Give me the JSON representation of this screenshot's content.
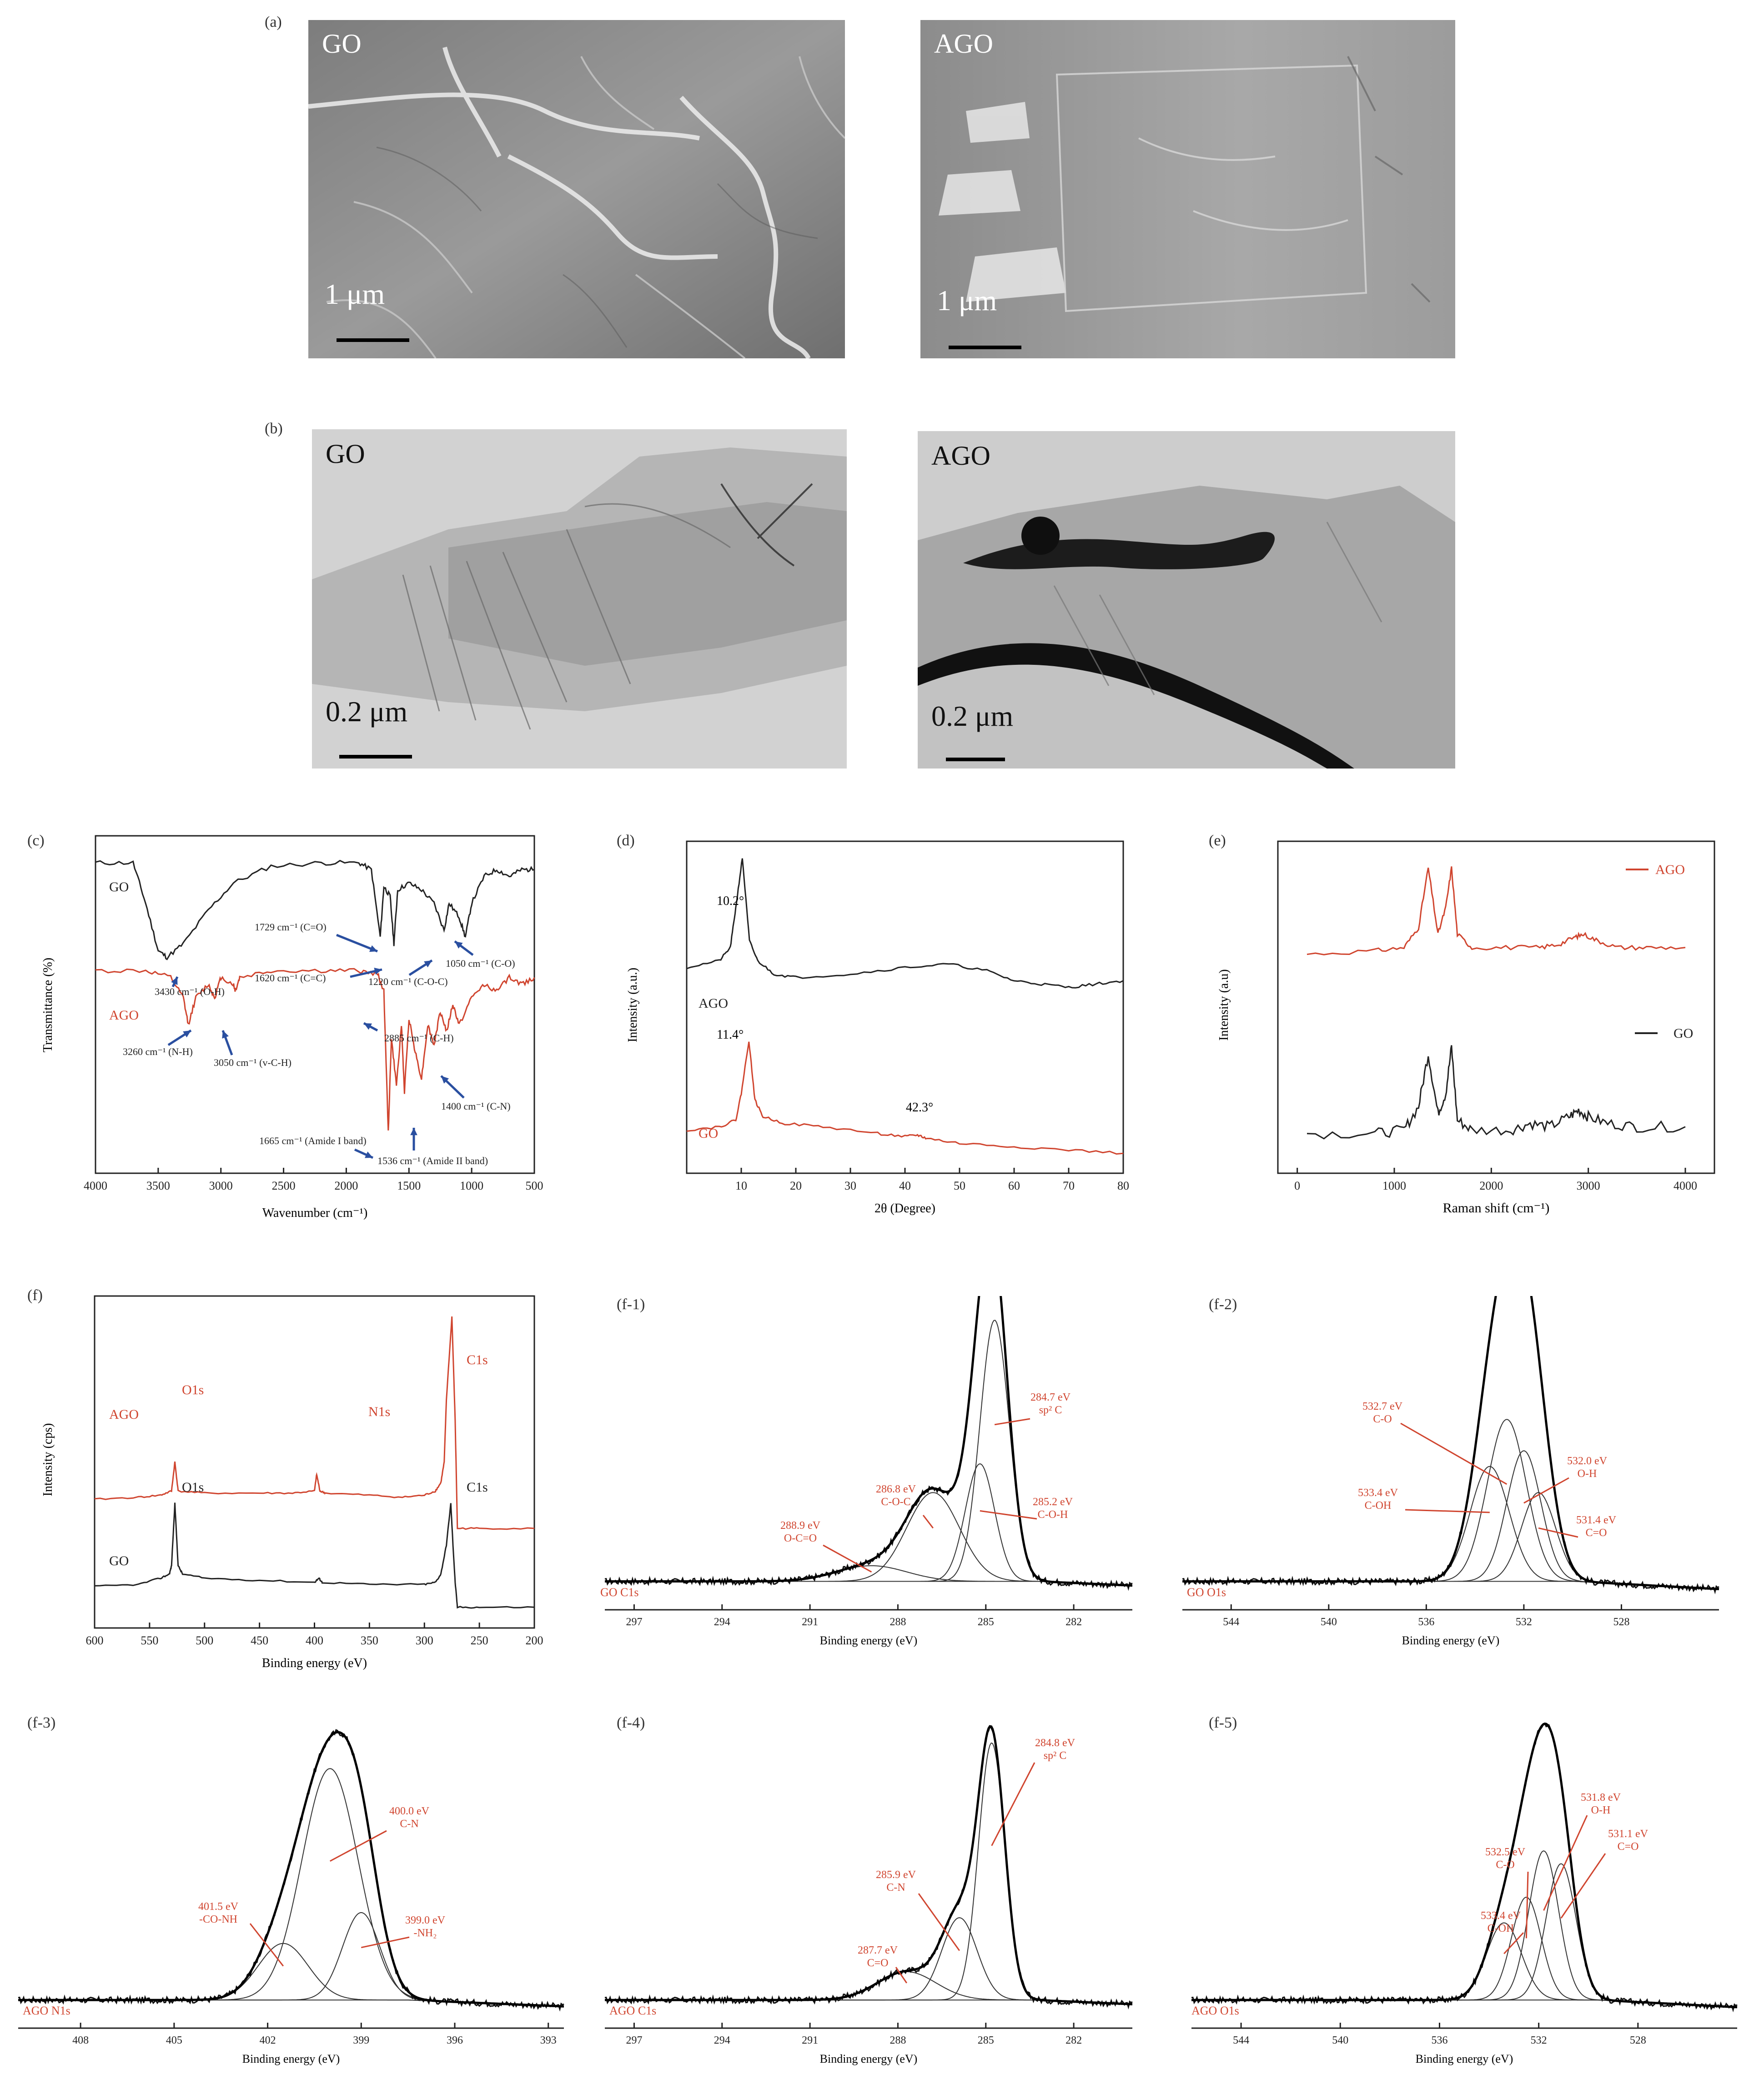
{
  "panels": {
    "a": "(a)",
    "b": "(b)",
    "c": "(c)",
    "d": "(d)",
    "e": "(e)",
    "f": "(f)",
    "f1": "(f-1)",
    "f2": "(f-2)",
    "f3": "(f-3)",
    "f4": "(f-4)",
    "f5": "(f-5)"
  },
  "sem": {
    "go_label": "GO",
    "ago_label": "AGO",
    "go_scale": "1 μm",
    "ago_scale": "1 μm"
  },
  "tem": {
    "go_label": "GO",
    "ago_label": "AGO",
    "go_scale": "0.2 μm",
    "ago_scale": "0.2 μm"
  },
  "colors": {
    "ago": "#d0452f",
    "go": "#222222",
    "arrow": "#2a4fa0",
    "fit": "#333333"
  },
  "chart_data": [
    {
      "id": "c",
      "type": "line",
      "xlabel": "Wavenumber  (cm⁻¹)",
      "ylabel": "Transmittance (%)",
      "xlim": [
        4000,
        500
      ],
      "xticks": [
        "4000",
        "3500",
        "3000",
        "2500",
        "2000",
        "1500",
        "1000",
        "500"
      ],
      "series": [
        {
          "name": "GO",
          "color": "#222222",
          "x": [
            4000,
            3700,
            3600,
            3500,
            3430,
            3300,
            3100,
            2900,
            2600,
            2200,
            1900,
            1800,
            1729,
            1700,
            1650,
            1620,
            1590,
            1500,
            1400,
            1300,
            1220,
            1180,
            1100,
            1050,
            1000,
            900,
            800,
            700,
            600,
            500
          ],
          "y": [
            92,
            92,
            80,
            66,
            64,
            68,
            78,
            86,
            91,
            92,
            92,
            90,
            70,
            85,
            82,
            68,
            84,
            86,
            84,
            80,
            72,
            80,
            76,
            70,
            80,
            88,
            90,
            88,
            90,
            90
          ]
        },
        {
          "name": "AGO",
          "color": "#d0452f",
          "x": [
            4000,
            3600,
            3400,
            3300,
            3260,
            3200,
            3100,
            3050,
            3000,
            2900,
            2885,
            2850,
            2600,
            2200,
            1900,
            1750,
            1700,
            1665,
            1640,
            1600,
            1560,
            1536,
            1500,
            1450,
            1400,
            1350,
            1300,
            1250,
            1200,
            1150,
            1100,
            1000,
            900,
            800,
            700,
            600,
            500
          ],
          "y": [
            60,
            60,
            58,
            52,
            44,
            52,
            56,
            52,
            58,
            56,
            54,
            58,
            60,
            60,
            60,
            59,
            54,
            12,
            40,
            26,
            44,
            24,
            46,
            36,
            28,
            44,
            38,
            48,
            42,
            50,
            44,
            52,
            56,
            54,
            58,
            56,
            58
          ]
        }
      ],
      "annotations": [
        "1729 cm⁻¹ (C=O)",
        "1620 cm⁻¹ (C=C)",
        "1220 cm⁻¹ (C-O-C)",
        "1050 cm⁻¹ (C-O)",
        "3430 cm⁻¹ (O-H)",
        "2885 cm⁻¹ (C-H)",
        "3260 cm⁻¹ (N-H)",
        "3050 cm⁻¹ (v-C-H)",
        "1400 cm⁻¹ (C-N)",
        "1665 cm⁻¹ (Amide I band)",
        "1536 cm⁻¹ (Amide II band)"
      ]
    },
    {
      "id": "d",
      "type": "line",
      "xlabel": "2θ (Degree)",
      "ylabel": "Intensity (a.u.)",
      "xlim": [
        0,
        80
      ],
      "xticks": [
        "10",
        "20",
        "30",
        "40",
        "50",
        "60",
        "70",
        "80"
      ],
      "series": [
        {
          "name": "AGO",
          "color": "#222222",
          "x": [
            0,
            6,
            8,
            9,
            10.2,
            11.5,
            13,
            16,
            20,
            30,
            40,
            48,
            55,
            60,
            65,
            70,
            75,
            80
          ],
          "y": [
            62,
            64,
            68,
            80,
            95,
            70,
            64,
            60,
            59,
            60,
            62,
            63,
            61,
            58,
            57,
            56,
            57,
            58
          ]
        },
        {
          "name": "GO",
          "color": "#d0452f",
          "x": [
            0,
            6,
            9,
            10,
            11.4,
            12.5,
            14,
            18,
            25,
            35,
            40,
            42.3,
            44,
            50,
            60,
            70,
            80
          ],
          "y": [
            13,
            14,
            16,
            24,
            40,
            22,
            17,
            15,
            14,
            12,
            11,
            11.5,
            10.5,
            9,
            8,
            7,
            6
          ]
        }
      ],
      "annotations": [
        "10.2°",
        "11.4°",
        "42.3°"
      ]
    },
    {
      "id": "e",
      "type": "line",
      "xlabel": "Raman shift (cm⁻¹)",
      "ylabel": "Intensity (a.u)",
      "xlim": [
        -200,
        4300
      ],
      "xticks": [
        "0",
        "1000",
        "2000",
        "3000",
        "4000"
      ],
      "series": [
        {
          "name": "AGO",
          "color": "#d0452f",
          "x": [
            100,
            800,
            1100,
            1250,
            1350,
            1450,
            1530,
            1590,
            1650,
            1800,
            2200,
            2500,
            2700,
            2850,
            2950,
            3100,
            3300,
            3600,
            4000
          ],
          "y": [
            66,
            67,
            68,
            74,
            92,
            72,
            80,
            92,
            72,
            68,
            68,
            68,
            69,
            71,
            72,
            70,
            68,
            68,
            68
          ]
        },
        {
          "name": "GO",
          "color": "#222222",
          "x": [
            100,
            800,
            1100,
            1250,
            1350,
            1450,
            1530,
            1590,
            1650,
            1800,
            2200,
            2400,
            2600,
            2800,
            2900,
            3000,
            3200,
            3500,
            4000
          ],
          "y": [
            12,
            12,
            13,
            20,
            36,
            18,
            24,
            38,
            16,
            13,
            13,
            15,
            14,
            17,
            19,
            17,
            15,
            14,
            14
          ]
        }
      ],
      "legend": [
        "AGO",
        "GO"
      ]
    },
    {
      "id": "f",
      "type": "line",
      "xlabel": "Binding energy  (eV)",
      "ylabel": "Intensity (cps)",
      "xlim": [
        600,
        200
      ],
      "xticks": [
        "600",
        "550",
        "500",
        "450",
        "400",
        "350",
        "300",
        "250",
        "200"
      ],
      "series": [
        {
          "name": "AGO",
          "color": "#d0452f",
          "x": [
            600,
            560,
            540,
            530,
            527,
            524,
            500,
            450,
            420,
            400,
            398,
            395,
            390,
            350,
            320,
            300,
            290,
            285,
            282,
            280,
            275,
            272,
            270,
            250,
            200
          ],
          "y": [
            62,
            63,
            64,
            66,
            80,
            66,
            65,
            65,
            65,
            66,
            74,
            66,
            65,
            64,
            63,
            64,
            66,
            70,
            80,
            110,
            150,
            100,
            48,
            48,
            48
          ]
        },
        {
          "name": "GO",
          "color": "#222222",
          "x": [
            600,
            560,
            540,
            532,
            530,
            527,
            524,
            520,
            500,
            450,
            400,
            396,
            393,
            350,
            300,
            290,
            285,
            280,
            276,
            274,
            272,
            270,
            250,
            200
          ],
          "y": [
            20,
            21,
            24,
            26,
            30,
            60,
            30,
            26,
            24,
            23,
            22,
            24,
            22,
            21,
            21,
            22,
            26,
            40,
            60,
            40,
            22,
            10,
            10,
            10
          ]
        }
      ],
      "annotations": [
        "O1s",
        "N1s",
        "C1s",
        "O1s",
        "C1s"
      ],
      "legend": [
        "AGO",
        "GO"
      ]
    },
    {
      "id": "f-1",
      "type": "line",
      "title": "GO C1s",
      "xlabel": "Binding energy (eV)",
      "xlim": [
        298,
        280
      ],
      "xticks": [
        "297",
        "294",
        "291",
        "288",
        "285",
        "282"
      ],
      "peaks": [
        {
          "center": 284.7,
          "height": 100,
          "width": 0.5,
          "label": "284.7 eV",
          "label2": "sp² C"
        },
        {
          "center": 285.2,
          "height": 45,
          "width": 0.5,
          "label": "285.2 eV",
          "label2": "C-O-H"
        },
        {
          "center": 286.8,
          "height": 34,
          "width": 0.9,
          "label": "286.8 eV",
          "label2": "C-O-C"
        },
        {
          "center": 288.9,
          "height": 6,
          "width": 1.2,
          "label": "288.9 eV",
          "label2": "O-C=O"
        }
      ]
    },
    {
      "id": "f-2",
      "type": "line",
      "title": "GO O1s",
      "xlabel": "Binding energy (eV)",
      "xlim": [
        546,
        524
      ],
      "xticks": [
        "544",
        "540",
        "536",
        "532",
        "528"
      ],
      "peaks": [
        {
          "center": 532.7,
          "height": 62,
          "width": 0.8,
          "label": "532.7 eV",
          "label2": "C-O"
        },
        {
          "center": 532.0,
          "height": 50,
          "width": 0.7,
          "label": "532.0 eV",
          "label2": "O-H"
        },
        {
          "center": 533.4,
          "height": 44,
          "width": 0.8,
          "label": "533.4 eV",
          "label2": "C-OH"
        },
        {
          "center": 531.4,
          "height": 34,
          "width": 0.7,
          "label": "531.4 eV",
          "label2": "C=O"
        }
      ]
    },
    {
      "id": "f-3",
      "type": "line",
      "title": "AGO N1s",
      "xlabel": "Binding energy  (eV)",
      "xlim": [
        410,
        392.5
      ],
      "xticks": [
        "408",
        "405",
        "402",
        "399",
        "396",
        "393"
      ],
      "peaks": [
        {
          "center": 400.0,
          "height": 90,
          "width": 0.9,
          "label": "400.0 eV",
          "label2": "C-N"
        },
        {
          "center": 401.5,
          "height": 22,
          "width": 0.8,
          "label": "401.5 eV",
          "label2": "-CO-NH"
        },
        {
          "center": 399.0,
          "height": 34,
          "width": 0.6,
          "label": "399.0 eV",
          "label2": "-NH₂"
        }
      ]
    },
    {
      "id": "f-4",
      "type": "line",
      "title": "AGO C1s",
      "xlabel": "Binding energy (eV)",
      "xlim": [
        298,
        280
      ],
      "xticks": [
        "297",
        "294",
        "291",
        "288",
        "285",
        "282"
      ],
      "peaks": [
        {
          "center": 284.8,
          "height": 100,
          "width": 0.45,
          "label": "284.8 eV",
          "label2": "sp² C"
        },
        {
          "center": 285.9,
          "height": 32,
          "width": 0.6,
          "label": "285.9 eV",
          "label2": "C-N"
        },
        {
          "center": 287.7,
          "height": 11,
          "width": 1.0,
          "label": "287.7 eV",
          "label2": "C=O"
        }
      ]
    },
    {
      "id": "f-5",
      "type": "line",
      "title": "AGO  O1s",
      "xlabel": "Binding energy (eV)",
      "xlim": [
        546,
        524
      ],
      "xticks": [
        "544",
        "540",
        "536",
        "532",
        "528"
      ],
      "peaks": [
        {
          "center": 531.8,
          "height": 58,
          "width": 0.6,
          "label": "531.8 eV",
          "label2": "O-H"
        },
        {
          "center": 531.1,
          "height": 53,
          "width": 0.6,
          "label": "531.1 eV",
          "label2": "C=O"
        },
        {
          "center": 532.5,
          "height": 40,
          "width": 0.6,
          "label": "532.5 eV",
          "label2": "C-O"
        },
        {
          "center": 533.4,
          "height": 30,
          "width": 0.7,
          "label": "533.4 eV",
          "label2": "C-OH"
        }
      ]
    }
  ]
}
